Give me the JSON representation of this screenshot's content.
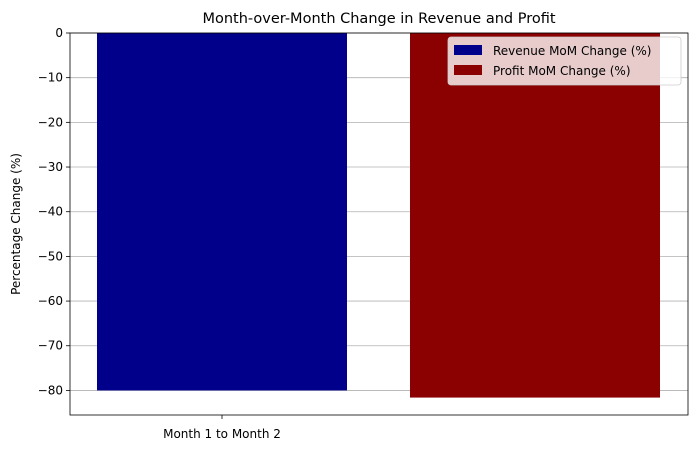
{
  "chart_data": {
    "type": "bar",
    "title": "Month-over-Month Change in Revenue and Profit",
    "xlabel": "",
    "ylabel": "Percentage Change (%)",
    "categories": [
      "Month 1 to Month 2"
    ],
    "series": [
      {
        "name": "Revenue MoM Change (%)",
        "values": [
          -80.0
        ],
        "color": "#00008b"
      },
      {
        "name": "Profit MoM Change (%)",
        "values": [
          -81.6
        ],
        "color": "#8b0000"
      }
    ],
    "ylim": [
      -85.5,
      0
    ],
    "yticks": [
      0,
      -10,
      -20,
      -30,
      -40,
      -50,
      -60,
      -70,
      -80
    ],
    "ytick_labels": [
      "0",
      "−10",
      "−20",
      "−30",
      "−40",
      "−50",
      "−60",
      "−70",
      "−80"
    ],
    "grid": "y",
    "legend_position": "top-right"
  }
}
